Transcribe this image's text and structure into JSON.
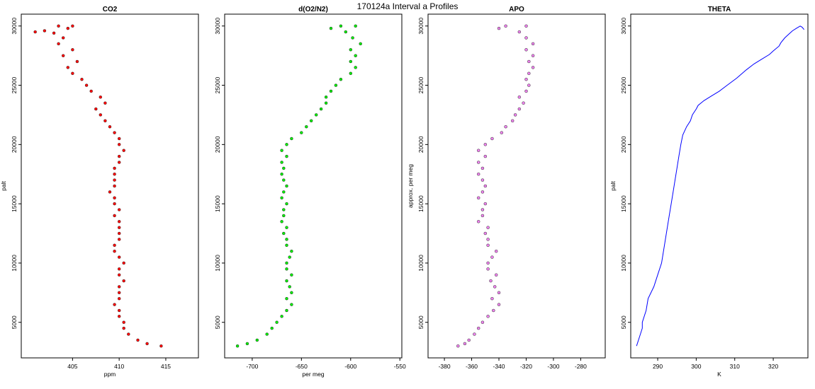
{
  "figure": {
    "title": "170124a   Interval a Profiles"
  },
  "colors": {
    "co2": "#ff0000",
    "o2n2": "#00ee00",
    "apo": "#ee82ee",
    "theta": "#0000ff"
  },
  "chart_data": [
    {
      "type": "scatter",
      "title": "CO2",
      "xlabel": "ppm",
      "ylabel": "palt",
      "xlim": [
        399.5,
        418.5
      ],
      "ylim": [
        2000,
        31000
      ],
      "xticks": [
        405,
        410,
        415
      ],
      "yticks": [
        5000,
        10000,
        15000,
        20000,
        25000,
        30000
      ],
      "series": [
        {
          "values": [
            [
              403.5,
              30000
            ],
            [
              405,
              30000
            ],
            [
              404.5,
              29800
            ],
            [
              402,
              29600
            ],
            [
              401,
              29500
            ],
            [
              403,
              29400
            ],
            [
              404,
              29000
            ],
            [
              403.5,
              28500
            ],
            [
              405,
              28000
            ],
            [
              404,
              27500
            ],
            [
              405.5,
              27000
            ],
            [
              404.5,
              26500
            ],
            [
              405,
              26000
            ],
            [
              406,
              25500
            ],
            [
              406.5,
              25000
            ],
            [
              407,
              24500
            ],
            [
              408,
              24000
            ],
            [
              408.5,
              23500
            ],
            [
              407.5,
              23000
            ],
            [
              408,
              22500
            ],
            [
              408.5,
              22000
            ],
            [
              409,
              21500
            ],
            [
              409.5,
              21000
            ],
            [
              410,
              20500
            ],
            [
              410,
              20000
            ],
            [
              410.5,
              19500
            ],
            [
              410,
              19000
            ],
            [
              410,
              18500
            ],
            [
              409.5,
              18000
            ],
            [
              409.5,
              17500
            ],
            [
              409.5,
              17000
            ],
            [
              409.5,
              16500
            ],
            [
              409,
              16000
            ],
            [
              409.5,
              15500
            ],
            [
              409.5,
              15000
            ],
            [
              410,
              14500
            ],
            [
              409.5,
              14000
            ],
            [
              410,
              13500
            ],
            [
              410,
              13000
            ],
            [
              410,
              12500
            ],
            [
              410,
              12000
            ],
            [
              409.5,
              11500
            ],
            [
              409.5,
              11000
            ],
            [
              410,
              10500
            ],
            [
              410.5,
              10000
            ],
            [
              410,
              9500
            ],
            [
              410,
              9000
            ],
            [
              410.5,
              8500
            ],
            [
              410,
              8000
            ],
            [
              410,
              7500
            ],
            [
              410,
              7000
            ],
            [
              409.5,
              6500
            ],
            [
              410,
              6000
            ],
            [
              410,
              5500
            ],
            [
              410.5,
              5000
            ],
            [
              410.5,
              4500
            ],
            [
              411,
              4000
            ],
            [
              412,
              3500
            ],
            [
              413,
              3200
            ],
            [
              414.5,
              3000
            ]
          ]
        }
      ]
    },
    {
      "type": "scatter",
      "title": "d(O2/N2)",
      "xlabel": "per meg",
      "ylabel": "",
      "xlim": [
        -728,
        -548
      ],
      "ylim": [
        2000,
        31000
      ],
      "xticks": [
        -700,
        -650,
        -600,
        -550
      ],
      "yticks": [
        5000,
        10000,
        15000,
        20000,
        25000,
        30000
      ],
      "series": [
        {
          "values": [
            [
              -610,
              30000
            ],
            [
              -595,
              30000
            ],
            [
              -620,
              29800
            ],
            [
              -605,
              29500
            ],
            [
              -598,
              29000
            ],
            [
              -590,
              28500
            ],
            [
              -600,
              28000
            ],
            [
              -595,
              27500
            ],
            [
              -600,
              27000
            ],
            [
              -595,
              26500
            ],
            [
              -600,
              26000
            ],
            [
              -610,
              25500
            ],
            [
              -615,
              25000
            ],
            [
              -620,
              24500
            ],
            [
              -625,
              24000
            ],
            [
              -625,
              23500
            ],
            [
              -630,
              23000
            ],
            [
              -635,
              22500
            ],
            [
              -640,
              22000
            ],
            [
              -645,
              21500
            ],
            [
              -650,
              21000
            ],
            [
              -660,
              20500
            ],
            [
              -665,
              20000
            ],
            [
              -670,
              19500
            ],
            [
              -665,
              19000
            ],
            [
              -670,
              18500
            ],
            [
              -668,
              18000
            ],
            [
              -670,
              17500
            ],
            [
              -668,
              17000
            ],
            [
              -665,
              16500
            ],
            [
              -668,
              16000
            ],
            [
              -670,
              15500
            ],
            [
              -665,
              15000
            ],
            [
              -668,
              14500
            ],
            [
              -668,
              14000
            ],
            [
              -670,
              13500
            ],
            [
              -665,
              13000
            ],
            [
              -668,
              12500
            ],
            [
              -665,
              12000
            ],
            [
              -665,
              11500
            ],
            [
              -660,
              11000
            ],
            [
              -662,
              10500
            ],
            [
              -665,
              10000
            ],
            [
              -665,
              9500
            ],
            [
              -660,
              9000
            ],
            [
              -665,
              8500
            ],
            [
              -662,
              8000
            ],
            [
              -660,
              7500
            ],
            [
              -665,
              7000
            ],
            [
              -660,
              6500
            ],
            [
              -665,
              6000
            ],
            [
              -670,
              5500
            ],
            [
              -675,
              5000
            ],
            [
              -680,
              4500
            ],
            [
              -685,
              4000
            ],
            [
              -695,
              3500
            ],
            [
              -705,
              3200
            ],
            [
              -715,
              3000
            ]
          ]
        }
      ]
    },
    {
      "type": "scatter",
      "title": "APO",
      "xlabel": "",
      "ylabel": "approx. per meg",
      "xlim": [
        -392,
        -262
      ],
      "ylim": [
        2000,
        31000
      ],
      "xticks": [
        -380,
        -360,
        -340,
        -320,
        -300,
        -280
      ],
      "yticks": [
        5000,
        10000,
        15000,
        20000,
        25000,
        30000
      ],
      "series": [
        {
          "values": [
            [
              -335,
              30000
            ],
            [
              -320,
              30000
            ],
            [
              -340,
              29800
            ],
            [
              -325,
              29500
            ],
            [
              -320,
              29000
            ],
            [
              -315,
              28500
            ],
            [
              -320,
              28000
            ],
            [
              -315,
              27500
            ],
            [
              -318,
              27000
            ],
            [
              -315,
              26500
            ],
            [
              -318,
              26000
            ],
            [
              -320,
              25500
            ],
            [
              -318,
              25000
            ],
            [
              -320,
              24500
            ],
            [
              -325,
              24000
            ],
            [
              -322,
              23500
            ],
            [
              -325,
              23000
            ],
            [
              -328,
              22500
            ],
            [
              -330,
              22000
            ],
            [
              -335,
              21500
            ],
            [
              -338,
              21000
            ],
            [
              -345,
              20500
            ],
            [
              -350,
              20000
            ],
            [
              -355,
              19500
            ],
            [
              -350,
              19000
            ],
            [
              -355,
              18500
            ],
            [
              -352,
              18000
            ],
            [
              -355,
              17500
            ],
            [
              -352,
              17000
            ],
            [
              -350,
              16500
            ],
            [
              -352,
              16000
            ],
            [
              -355,
              15500
            ],
            [
              -350,
              15000
            ],
            [
              -352,
              14500
            ],
            [
              -352,
              14000
            ],
            [
              -355,
              13500
            ],
            [
              -348,
              13000
            ],
            [
              -350,
              12500
            ],
            [
              -348,
              12000
            ],
            [
              -348,
              11500
            ],
            [
              -342,
              11000
            ],
            [
              -345,
              10500
            ],
            [
              -348,
              10000
            ],
            [
              -348,
              9500
            ],
            [
              -342,
              9000
            ],
            [
              -346,
              8500
            ],
            [
              -343,
              8000
            ],
            [
              -340,
              7500
            ],
            [
              -345,
              7000
            ],
            [
              -340,
              6500
            ],
            [
              -344,
              6000
            ],
            [
              -348,
              5500
            ],
            [
              -352,
              5000
            ],
            [
              -355,
              4500
            ],
            [
              -358,
              4000
            ],
            [
              -362,
              3500
            ],
            [
              -365,
              3200
            ],
            [
              -370,
              3000
            ]
          ]
        }
      ]
    },
    {
      "type": "line",
      "title": "THETA",
      "xlabel": "K",
      "ylabel": "palt",
      "xlim": [
        283,
        329
      ],
      "ylim": [
        2000,
        31000
      ],
      "xticks": [
        290,
        300,
        310,
        320
      ],
      "yticks": [
        5000,
        10000,
        15000,
        20000,
        25000,
        30000
      ],
      "series": [
        {
          "values": [
            [
              284.5,
              3000
            ],
            [
              285,
              3500
            ],
            [
              285.5,
              4000
            ],
            [
              286,
              4500
            ],
            [
              286,
              5000
            ],
            [
              287,
              6000
            ],
            [
              287.5,
              7000
            ],
            [
              289,
              8000
            ],
            [
              290,
              9000
            ],
            [
              291,
              10000
            ],
            [
              291.5,
              11000
            ],
            [
              292,
              12000
            ],
            [
              292.5,
              13000
            ],
            [
              293,
              14000
            ],
            [
              293.5,
              15000
            ],
            [
              294,
              16000
            ],
            [
              294.5,
              17000
            ],
            [
              295,
              18000
            ],
            [
              295.5,
              19000
            ],
            [
              296,
              20000
            ],
            [
              296.5,
              20800
            ],
            [
              297.5,
              21500
            ],
            [
              298.5,
              22000
            ],
            [
              299,
              22500
            ],
            [
              300,
              23000
            ],
            [
              300.5,
              23300
            ],
            [
              302,
              23700
            ],
            [
              304,
              24100
            ],
            [
              306,
              24500
            ],
            [
              308,
              25000
            ],
            [
              310.5,
              25600
            ],
            [
              313,
              26300
            ],
            [
              315,
              26800
            ],
            [
              317,
              27200
            ],
            [
              319,
              27600
            ],
            [
              320,
              27900
            ],
            [
              321.5,
              28300
            ],
            [
              322,
              28600
            ],
            [
              323,
              29000
            ],
            [
              324,
              29300
            ],
            [
              325,
              29600
            ],
            [
              326,
              29800
            ],
            [
              327,
              30000
            ],
            [
              327.5,
              29900
            ],
            [
              328,
              29700
            ]
          ]
        }
      ]
    }
  ]
}
